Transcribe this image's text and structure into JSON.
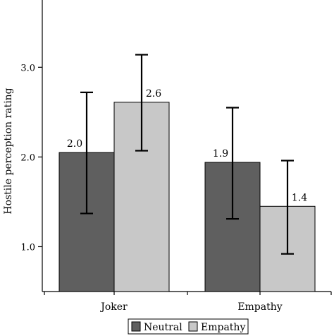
{
  "chart_data": {
    "type": "bar",
    "title": "",
    "xlabel": "",
    "ylabel": "Hostile perception rating",
    "categories": [
      "Joker",
      "Empathy"
    ],
    "ylim": [
      0.5,
      3.75
    ],
    "yticks": [
      1.0,
      2.0,
      3.0
    ],
    "ytick_labels": [
      "1.0",
      "2.0",
      "3.0"
    ],
    "grid": false,
    "legend_position": "bottom-center",
    "series": [
      {
        "name": "Neutral",
        "color": "#5f5f5f",
        "values": [
          2.05,
          1.94
        ],
        "error_low": [
          1.37,
          1.31
        ],
        "error_high": [
          2.72,
          2.55
        ],
        "labels": [
          "2.0",
          "1.9"
        ]
      },
      {
        "name": "Empathy",
        "color": "#c8c8c8",
        "values": [
          2.61,
          1.45
        ],
        "error_low": [
          2.07,
          0.92
        ],
        "error_high": [
          3.14,
          1.96
        ],
        "labels": [
          "2.6",
          "1.4"
        ]
      }
    ]
  }
}
